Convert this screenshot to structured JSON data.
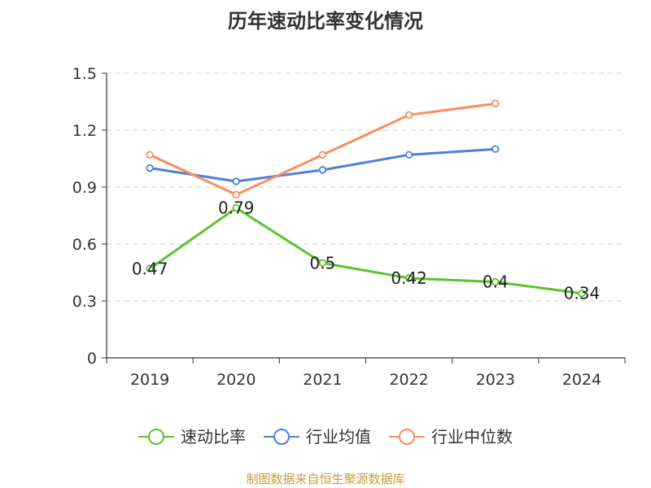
{
  "chart_data": {
    "type": "line",
    "title": "历年速动比率变化情况",
    "categories": [
      "2019",
      "2020",
      "2021",
      "2022",
      "2023",
      "2024"
    ],
    "y_ticks": [
      "0",
      "0.3",
      "0.6",
      "0.9",
      "1.2",
      "1.5"
    ],
    "ylim": [
      0,
      1.5
    ],
    "grid": true,
    "legend_position": "bottom",
    "series": [
      {
        "name": "速动比率",
        "color": "#5cc22c",
        "values": [
          0.47,
          0.79,
          0.5,
          0.42,
          0.4,
          0.34
        ],
        "labels": [
          "0.47",
          "0.79",
          "0.5",
          "0.42",
          "0.4",
          "0.34"
        ]
      },
      {
        "name": "行业均值",
        "color": "#4f7fdc",
        "values": [
          1.0,
          0.93,
          0.99,
          1.07,
          1.1,
          null
        ]
      },
      {
        "name": "行业中位数",
        "color": "#f78f5b",
        "values": [
          1.07,
          0.86,
          1.07,
          1.28,
          1.34,
          null
        ]
      }
    ]
  },
  "source": "制图数据来自恒生聚源数据库"
}
